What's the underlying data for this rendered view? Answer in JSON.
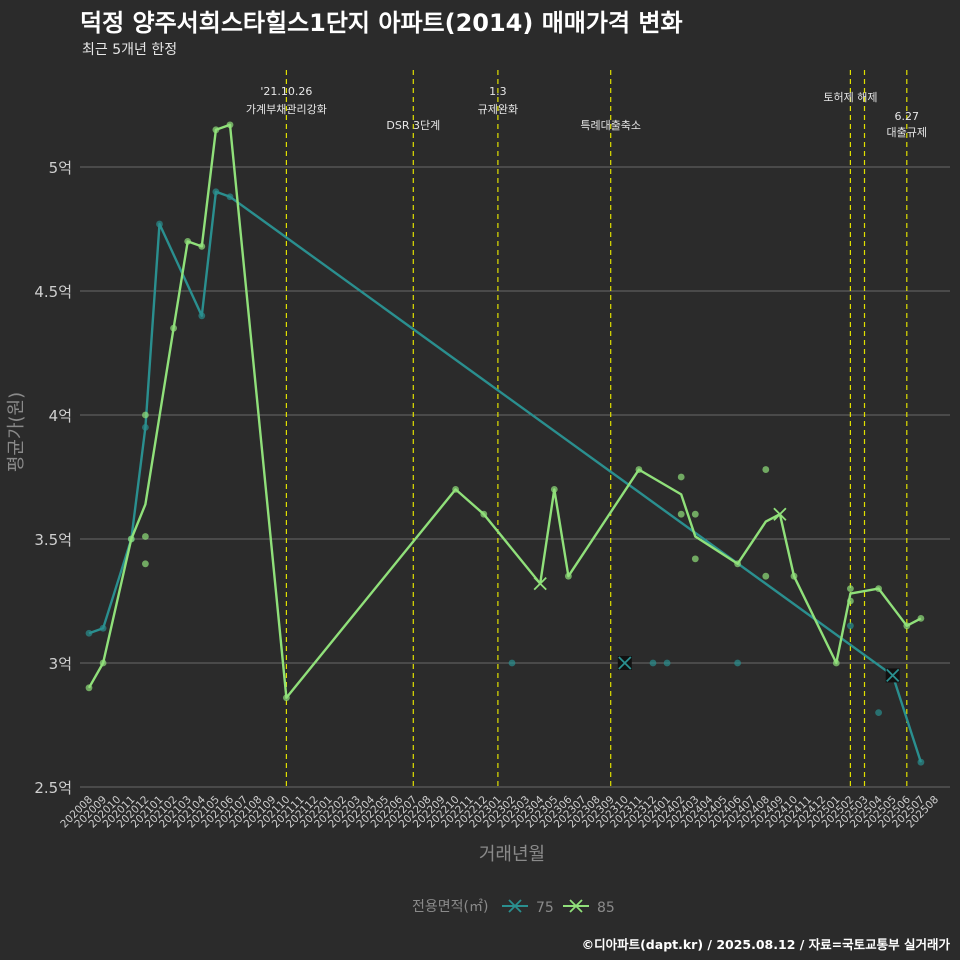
{
  "title": "덕정 양주서희스타힐스1단지 아파트(2014) 매매가격 변화",
  "subtitle": "최근 5개년 한정",
  "caption": "©디아파트(dapt.kr) / 2025.08.12 / 자료=국토교통부 실거래가",
  "colors": {
    "background": "#2b2b2b",
    "grid": "#6a6a6a",
    "s75": "#2a8f8f",
    "s85": "#90e07a",
    "event_line": "#e0e000"
  },
  "chart_data": {
    "type": "line",
    "xlabel": "거래년월",
    "ylabel": "평균가(원)",
    "ylim": [
      2.5,
      5.0
    ],
    "y_ticks": [
      {
        "value": 2.5,
        "label": "2.5억"
      },
      {
        "value": 3.0,
        "label": "3억"
      },
      {
        "value": 3.5,
        "label": "3.5억"
      },
      {
        "value": 4.0,
        "label": "4억"
      },
      {
        "value": 4.5,
        "label": "4.5억"
      },
      {
        "value": 5.0,
        "label": "5억"
      }
    ],
    "categories": [
      "202008",
      "202009",
      "202010",
      "202011",
      "202012",
      "202101",
      "202102",
      "202103",
      "202104",
      "202105",
      "202106",
      "202107",
      "202108",
      "202109",
      "202110",
      "202111",
      "202112",
      "202201",
      "202202",
      "202203",
      "202204",
      "202205",
      "202206",
      "202207",
      "202208",
      "202209",
      "202210",
      "202211",
      "202212",
      "202301",
      "202302",
      "202303",
      "202304",
      "202305",
      "202306",
      "202307",
      "202308",
      "202309",
      "202310",
      "202311",
      "202312",
      "202401",
      "202402",
      "202403",
      "202404",
      "202405",
      "202406",
      "202407",
      "202408",
      "202409",
      "202410",
      "202411",
      "202412",
      "202501",
      "202502",
      "202503",
      "202504",
      "202505",
      "202506",
      "202507",
      "202508"
    ],
    "legend": {
      "title": "전용면적(㎡)",
      "position": "bottom"
    },
    "series": [
      {
        "name": "75",
        "line": [
          [
            "202008",
            3.12
          ],
          [
            "202009",
            3.14
          ],
          [
            "202011",
            3.5
          ],
          [
            "202012",
            3.95
          ],
          [
            "202101",
            4.77
          ],
          [
            "202104",
            4.4
          ],
          [
            "202105",
            4.9
          ],
          [
            "202106",
            4.88
          ],
          [
            "202505",
            2.95
          ],
          [
            "202507",
            2.6
          ]
        ],
        "points": [
          [
            "202008",
            3.12
          ],
          [
            "202009",
            3.14
          ],
          [
            "202011",
            3.5
          ],
          [
            "202012",
            3.95
          ],
          [
            "202101",
            4.77
          ],
          [
            "202104",
            4.4
          ],
          [
            "202105",
            4.9
          ],
          [
            "202106",
            4.88
          ],
          [
            "202302",
            3.0
          ],
          [
            "202310",
            3.0
          ],
          [
            "202312",
            3.0
          ],
          [
            "202401",
            3.0
          ],
          [
            "202406",
            3.0
          ],
          [
            "202502",
            3.15
          ],
          [
            "202504",
            2.8
          ],
          [
            "202505",
            2.95
          ],
          [
            "202507",
            2.6
          ]
        ],
        "markers_x": [
          [
            "202310",
            3.0
          ],
          [
            "202505",
            2.95
          ]
        ]
      },
      {
        "name": "85",
        "line": [
          [
            "202008",
            2.9
          ],
          [
            "202009",
            3.0
          ],
          [
            "202011",
            3.5
          ],
          [
            "202012",
            3.64
          ],
          [
            "202102",
            4.35
          ],
          [
            "202103",
            4.7
          ],
          [
            "202104",
            4.68
          ],
          [
            "202105",
            5.15
          ],
          [
            "202106",
            5.17
          ],
          [
            "202110",
            2.86
          ],
          [
            "202210",
            3.7
          ],
          [
            "202212",
            3.6
          ],
          [
            "202304",
            3.32
          ],
          [
            "202305",
            3.7
          ],
          [
            "202306",
            3.35
          ],
          [
            "202311",
            3.78
          ],
          [
            "202402",
            3.68
          ],
          [
            "202403",
            3.51
          ],
          [
            "202406",
            3.4
          ],
          [
            "202408",
            3.57
          ],
          [
            "202409",
            3.6
          ],
          [
            "202410",
            3.35
          ],
          [
            "202501",
            3.0
          ],
          [
            "202502",
            3.28
          ],
          [
            "202504",
            3.3
          ],
          [
            "202506",
            3.15
          ],
          [
            "202507",
            3.18
          ]
        ],
        "points": [
          [
            "202008",
            2.9
          ],
          [
            "202009",
            3.0
          ],
          [
            "202011",
            3.5
          ],
          [
            "202012",
            4.0
          ],
          [
            "202012",
            3.51
          ],
          [
            "202012",
            3.4
          ],
          [
            "202102",
            4.35
          ],
          [
            "202103",
            4.7
          ],
          [
            "202104",
            4.68
          ],
          [
            "202105",
            5.15
          ],
          [
            "202106",
            5.17
          ],
          [
            "202110",
            2.86
          ],
          [
            "202210",
            3.7
          ],
          [
            "202212",
            3.6
          ],
          [
            "202305",
            3.7
          ],
          [
            "202306",
            3.35
          ],
          [
            "202311",
            3.78
          ],
          [
            "202402",
            3.75
          ],
          [
            "202402",
            3.6
          ],
          [
            "202403",
            3.6
          ],
          [
            "202403",
            3.42
          ],
          [
            "202406",
            3.4
          ],
          [
            "202408",
            3.78
          ],
          [
            "202408",
            3.35
          ],
          [
            "202410",
            3.35
          ],
          [
            "202501",
            3.0
          ],
          [
            "202502",
            3.3
          ],
          [
            "202502",
            3.25
          ],
          [
            "202504",
            3.3
          ],
          [
            "202506",
            3.15
          ],
          [
            "202507",
            3.18
          ]
        ],
        "markers_x": [
          [
            "202304",
            3.32
          ],
          [
            "202409",
            3.6
          ]
        ]
      }
    ],
    "events": [
      {
        "x": "202110",
        "lines": [
          "'21.10.26",
          "가계부채관리강화"
        ],
        "row": 0
      },
      {
        "x": "202207",
        "lines": [
          "DSR 3단계"
        ],
        "row": 2
      },
      {
        "x": "202301",
        "lines": [
          "1.3",
          "규제완화"
        ],
        "row": 0
      },
      {
        "x": "202309",
        "lines": [
          "특례대출축소"
        ],
        "row": 2
      },
      {
        "x": "202502",
        "lines": [
          "토허제 해제"
        ],
        "row": 1
      },
      {
        "x": "202503",
        "lines": [],
        "row": 1
      },
      {
        "x": "202506",
        "lines": [
          "6.27",
          "대출규제"
        ],
        "row": 3
      }
    ]
  }
}
